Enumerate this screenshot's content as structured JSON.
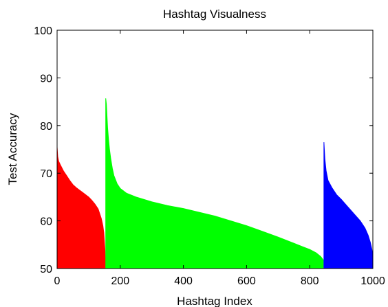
{
  "chart_data": {
    "type": "area",
    "title": "Hashtag Visualness",
    "xlabel": "Hashtag Index",
    "ylabel": "Test Accuracy",
    "xlim": [
      0,
      1000
    ],
    "ylim": [
      50,
      100
    ],
    "xticks": [
      0,
      200,
      400,
      600,
      800,
      1000
    ],
    "yticks": [
      50,
      60,
      70,
      80,
      90,
      100
    ],
    "grid": false,
    "legend": "none",
    "series": [
      {
        "color": "#ff0000",
        "points": [
          [
            0,
            75.5
          ],
          [
            2,
            73.5
          ],
          [
            5,
            72.5
          ],
          [
            10,
            71.8
          ],
          [
            20,
            70.5
          ],
          [
            30,
            69.5
          ],
          [
            40,
            68.5
          ],
          [
            50,
            67.6
          ],
          [
            60,
            67.0
          ],
          [
            70,
            66.5
          ],
          [
            80,
            66.0
          ],
          [
            90,
            65.5
          ],
          [
            100,
            65.0
          ],
          [
            110,
            64.3
          ],
          [
            120,
            63.5
          ],
          [
            130,
            62.5
          ],
          [
            135,
            61.5
          ],
          [
            140,
            60.5
          ],
          [
            145,
            59.0
          ],
          [
            148,
            57.5
          ],
          [
            150,
            55.5
          ],
          [
            152,
            53.5
          ],
          [
            153,
            51.0
          ]
        ]
      },
      {
        "color": "#00ff00",
        "points": [
          [
            154,
            85.7
          ],
          [
            156,
            84.5
          ],
          [
            158,
            82.0
          ],
          [
            160,
            79.5
          ],
          [
            163,
            77.0
          ],
          [
            166,
            75.0
          ],
          [
            170,
            73.0
          ],
          [
            175,
            71.0
          ],
          [
            180,
            69.5
          ],
          [
            190,
            67.8
          ],
          [
            200,
            66.8
          ],
          [
            220,
            65.8
          ],
          [
            250,
            65.0
          ],
          [
            300,
            64.0
          ],
          [
            350,
            63.2
          ],
          [
            400,
            62.6
          ],
          [
            450,
            61.8
          ],
          [
            500,
            61.0
          ],
          [
            550,
            60.0
          ],
          [
            600,
            59.0
          ],
          [
            650,
            57.8
          ],
          [
            700,
            56.6
          ],
          [
            750,
            55.3
          ],
          [
            780,
            54.5
          ],
          [
            800,
            54.0
          ],
          [
            820,
            53.3
          ],
          [
            835,
            52.5
          ],
          [
            843,
            51.8
          ]
        ]
      },
      {
        "color": "#0000ff",
        "points": [
          [
            845,
            76.5
          ],
          [
            848,
            73.0
          ],
          [
            852,
            70.5
          ],
          [
            858,
            68.5
          ],
          [
            870,
            67.0
          ],
          [
            885,
            65.5
          ],
          [
            900,
            64.5
          ],
          [
            920,
            63.0
          ],
          [
            940,
            61.5
          ],
          [
            960,
            60.0
          ],
          [
            975,
            58.5
          ],
          [
            985,
            57.0
          ],
          [
            992,
            55.5
          ],
          [
            997,
            54.0
          ],
          [
            1000,
            52.5
          ]
        ]
      }
    ]
  }
}
